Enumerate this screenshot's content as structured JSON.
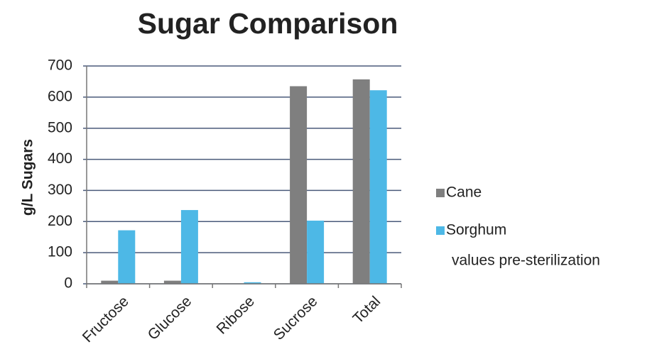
{
  "chart_data": {
    "type": "bar",
    "title": "Sugar Comparison",
    "y_label": "g/L Sugars",
    "categories": [
      "Fructose",
      "Glucose",
      "Ribose",
      "Sucrose",
      "Total"
    ],
    "series": [
      {
        "name": "Cane",
        "color": "#7f7f7f",
        "values": [
          10,
          10,
          0,
          635,
          657
        ]
      },
      {
        "name": "Sorghum",
        "color": "#4db8e6",
        "values": [
          172,
          237,
          5,
          203,
          622
        ]
      }
    ],
    "note": "values pre-sterilization",
    "ylim": [
      0,
      700
    ],
    "yticks": [
      0,
      100,
      200,
      300,
      400,
      500,
      600,
      700
    ],
    "grid": true,
    "legend": "right"
  }
}
